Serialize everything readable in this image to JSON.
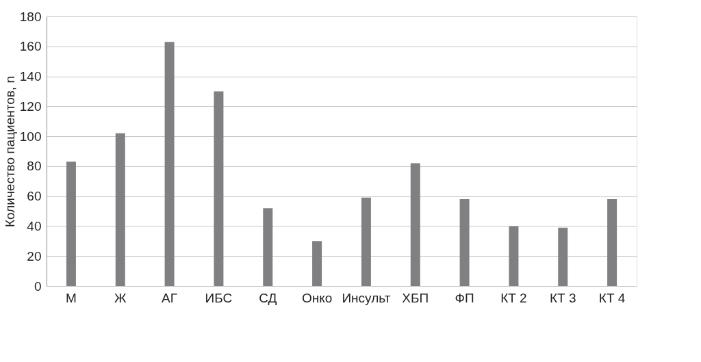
{
  "chart_data": {
    "type": "bar",
    "ylabel": "Количество пациентов, n",
    "categories": [
      "М",
      "Ж",
      "АГ",
      "ИБС",
      "СД",
      "Онко",
      "Инсульт",
      "ХБП",
      "ФП",
      "КТ 2",
      "КТ 3",
      "КТ 4"
    ],
    "values": [
      83,
      102,
      163,
      130,
      52,
      30,
      59,
      82,
      58,
      40,
      39,
      58
    ],
    "color": "#808083",
    "ylim": [
      0,
      180
    ],
    "yticks": [
      0,
      20,
      40,
      60,
      80,
      100,
      120,
      140,
      160,
      180
    ],
    "grid": "y"
  }
}
